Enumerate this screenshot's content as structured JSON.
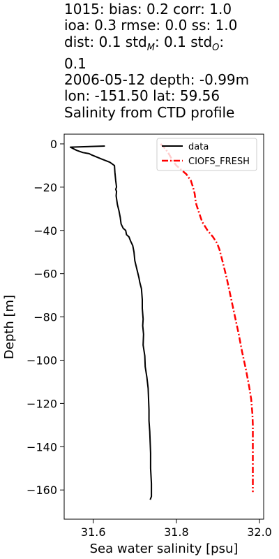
{
  "title_lines": [
    "1015: bias: 0.2  corr: 1.0",
    "ioa: 0.3  rmse: 0.0  ss: 1.0",
    "dist: 0.1  std_M: 0.1  std_O:",
    "0.1",
    "2006-05-12 depth: -0.99m",
    "lon: -151.50 lat: 59.56",
    "Salinity from CTD profile"
  ],
  "chart_data": {
    "type": "line",
    "xlabel": "Sea water salinity [psu]",
    "ylabel": "Depth [m]",
    "xlim": [
      31.53,
      32.01
    ],
    "ylim": [
      -173.5,
      4.5
    ],
    "xticks": [
      31.6,
      31.8,
      32.0
    ],
    "xtick_labels": [
      "31.6",
      "31.8",
      "32.0"
    ],
    "yticks": [
      0,
      -20,
      -40,
      -60,
      -80,
      -100,
      -120,
      -140,
      -160
    ],
    "ytick_labels": [
      "0",
      "−20",
      "−40",
      "−60",
      "−80",
      "−100",
      "−120",
      "−140",
      "−160"
    ],
    "grid": false,
    "legend_position": "top-right",
    "series": [
      {
        "name": "data",
        "color": "#000000",
        "style": "solid",
        "x": [
          31.628,
          31.545,
          31.56,
          31.575,
          31.59,
          31.595,
          31.62,
          31.64,
          31.651,
          31.652,
          31.654,
          31.656,
          31.654,
          31.656,
          31.655,
          31.658,
          31.662,
          31.665,
          31.667,
          31.672,
          31.678,
          31.68,
          31.686,
          31.69,
          31.695,
          31.698,
          31.7,
          31.705,
          31.71,
          31.712,
          31.716,
          31.718,
          31.718,
          31.72,
          31.719,
          31.721,
          31.72,
          31.724,
          31.725,
          31.729,
          31.732,
          31.733,
          31.734,
          31.734,
          31.736,
          31.737,
          31.738,
          31.738,
          31.74,
          31.74,
          31.737
        ],
        "y": [
          -0.99,
          -1.5,
          -3.0,
          -4.0,
          -4.5,
          -5.0,
          -7.0,
          -8.5,
          -10,
          -13,
          -17,
          -20,
          -21,
          -22,
          -24,
          -28,
          -31,
          -34,
          -37,
          -39,
          -40,
          -42,
          -43,
          -45,
          -47,
          -50,
          -54,
          -58,
          -62,
          -64,
          -67,
          -72,
          -76,
          -81,
          -84,
          -88,
          -93,
          -98,
          -103,
          -108,
          -113,
          -118,
          -123,
          -128,
          -133,
          -138,
          -143,
          -150,
          -157,
          -163,
          -164.5
        ]
      },
      {
        "name": "CIOFS_FRESH",
        "color": "#ff0000",
        "style": "dashdot",
        "x": [
          31.762,
          31.772,
          31.78,
          31.786,
          31.792,
          31.8,
          31.812,
          31.824,
          31.835,
          31.84,
          31.844,
          31.846,
          31.848,
          31.853,
          31.862,
          31.875,
          31.888,
          31.898,
          31.904,
          31.912,
          31.921,
          31.93,
          31.94,
          31.95,
          31.958,
          31.967,
          31.975,
          31.98,
          31.983,
          31.984,
          31.984,
          31.984,
          31.984,
          31.984,
          31.984,
          31.984
        ],
        "y": [
          0,
          -2,
          -4,
          -6,
          -8,
          -10,
          -12,
          -14,
          -17,
          -20,
          -23,
          -26,
          -28,
          -31,
          -36,
          -40,
          -43,
          -46,
          -49,
          -55,
          -62,
          -70,
          -79,
          -88,
          -96,
          -104,
          -112,
          -118,
          -125,
          -130,
          -135,
          -140,
          -145,
          -150,
          -155,
          -161
        ]
      }
    ]
  }
}
